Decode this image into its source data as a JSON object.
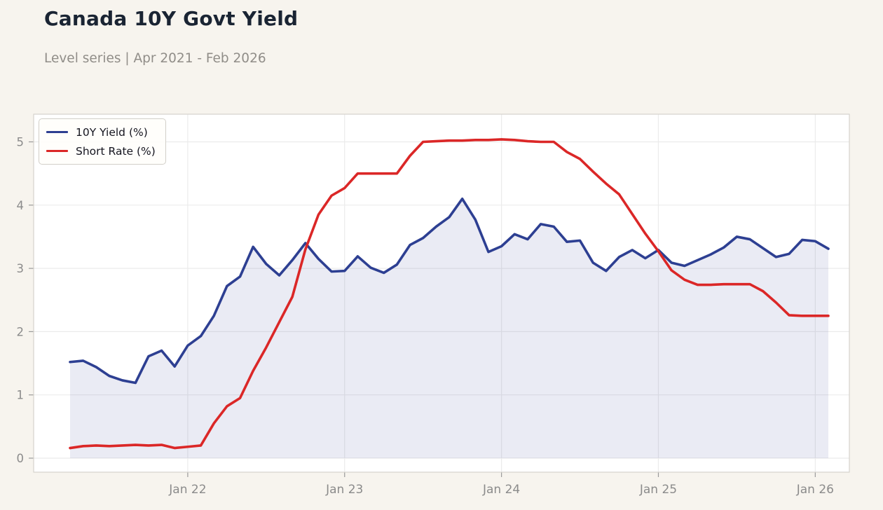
{
  "header": {
    "title": "Canada 10Y Govt Yield",
    "subtitle": "Level series | Apr 2021 - Feb 2026"
  },
  "chart_data": {
    "type": "line",
    "title": "Canada 10Y Govt Yield",
    "subtitle": "Level series | Apr 2021 - Feb 2026",
    "xlabel": "",
    "ylabel": "",
    "ylim": [
      0,
      5.4
    ],
    "y_ticks": [
      0,
      1,
      2,
      3,
      4,
      5
    ],
    "x_tick_labels": [
      "Jan 22",
      "Jan 23",
      "Jan 24",
      "Jan 25",
      "Jan 26"
    ],
    "x_tick_indices": [
      9,
      21,
      33,
      45,
      57
    ],
    "grid": true,
    "legend_position": "top-left",
    "area_fill": "rgba(45,63,146,0.10)",
    "x": [
      "2021-04",
      "2021-05",
      "2021-06",
      "2021-07",
      "2021-08",
      "2021-09",
      "2021-10",
      "2021-11",
      "2021-12",
      "2022-01",
      "2022-02",
      "2022-03",
      "2022-04",
      "2022-05",
      "2022-06",
      "2022-07",
      "2022-08",
      "2022-09",
      "2022-10",
      "2022-11",
      "2022-12",
      "2023-01",
      "2023-02",
      "2023-03",
      "2023-04",
      "2023-05",
      "2023-06",
      "2023-07",
      "2023-08",
      "2023-09",
      "2023-10",
      "2023-11",
      "2023-12",
      "2024-01",
      "2024-02",
      "2024-03",
      "2024-04",
      "2024-05",
      "2024-06",
      "2024-07",
      "2024-08",
      "2024-09",
      "2024-10",
      "2024-11",
      "2024-12",
      "2025-01",
      "2025-02",
      "2025-03",
      "2025-04",
      "2025-05",
      "2025-06",
      "2025-07",
      "2025-08",
      "2025-09",
      "2025-10",
      "2025-11",
      "2025-12",
      "2026-01",
      "2026-02"
    ],
    "series": [
      {
        "name": "10Y Yield (%)",
        "color": "#2d3f92",
        "fill_under": true,
        "values": [
          1.52,
          1.54,
          1.44,
          1.3,
          1.23,
          1.19,
          1.61,
          1.7,
          1.45,
          1.78,
          1.93,
          2.25,
          2.72,
          2.87,
          3.34,
          3.07,
          2.89,
          3.13,
          3.4,
          3.15,
          2.95,
          2.96,
          3.19,
          3.01,
          2.93,
          3.06,
          3.37,
          3.48,
          3.66,
          3.81,
          4.1,
          3.77,
          3.26,
          3.35,
          3.54,
          3.46,
          3.7,
          3.66,
          3.42,
          3.44,
          3.09,
          2.96,
          3.18,
          3.29,
          3.16,
          3.29,
          3.09,
          3.04,
          3.13,
          3.22,
          3.33,
          3.5,
          3.46,
          3.32,
          3.18,
          3.23,
          3.45,
          3.43,
          3.31
        ]
      },
      {
        "name": "Short Rate (%)",
        "color": "#db2727",
        "fill_under": false,
        "values": [
          0.16,
          0.19,
          0.2,
          0.19,
          0.2,
          0.21,
          0.2,
          0.21,
          0.16,
          0.18,
          0.2,
          0.55,
          0.82,
          0.95,
          1.38,
          1.75,
          2.15,
          2.55,
          3.3,
          3.85,
          4.15,
          4.27,
          4.5,
          4.5,
          4.5,
          4.5,
          4.78,
          5.0,
          5.01,
          5.02,
          5.02,
          5.03,
          5.03,
          5.04,
          5.03,
          5.01,
          5.0,
          5.0,
          4.84,
          4.73,
          4.53,
          4.34,
          4.17,
          3.86,
          3.55,
          3.27,
          2.97,
          2.82,
          2.74,
          2.74,
          2.75,
          2.75,
          2.75,
          2.64,
          2.46,
          2.26,
          2.25,
          2.25,
          2.25
        ]
      }
    ]
  }
}
